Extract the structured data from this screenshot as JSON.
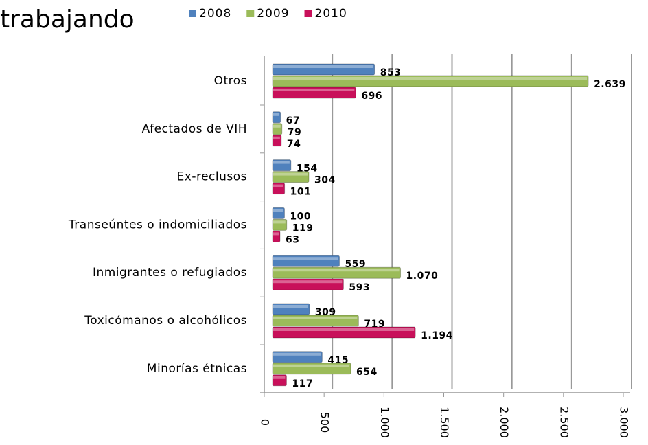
{
  "chart_data": {
    "type": "bar",
    "orientation": "horizontal",
    "title": "trabajando",
    "categories": [
      "Otros",
      "Afectados de VIH",
      "Ex-reclusos",
      "Transeúntes o indomiciliados",
      "Inmigrantes o refugiados",
      "Toxicómanos o alcohólicos",
      "Minorías étnicas"
    ],
    "series": [
      {
        "name": "2008",
        "color": "#4f81bd",
        "values": [
          853,
          67,
          154,
          100,
          559,
          309,
          415
        ],
        "value_labels": [
          "853",
          "67",
          "154",
          "100",
          "559",
          "309",
          "415"
        ]
      },
      {
        "name": "2009",
        "color": "#9bbb59",
        "values": [
          2639,
          79,
          304,
          119,
          1070,
          719,
          654
        ],
        "value_labels": [
          "2.639",
          "79",
          "304",
          "119",
          "1.070",
          "719",
          "654"
        ]
      },
      {
        "name": "2010",
        "color": "#c8105a",
        "values": [
          696,
          74,
          101,
          63,
          593,
          1194,
          117
        ],
        "value_labels": [
          "696",
          "74",
          "101",
          "63",
          "593",
          "1.194",
          "117"
        ]
      }
    ],
    "xlim": [
      0,
      3000
    ],
    "xticks": [
      0,
      500,
      {
        "value": 1000,
        "label": "1.000"
      },
      {
        "value": 1500,
        "label": "1.500"
      },
      {
        "value": 2000,
        "label": "2.000"
      },
      {
        "value": 2500,
        "label": "2.500"
      },
      {
        "value": 3000,
        "label": "3.000"
      }
    ],
    "grid": true,
    "legend": "top"
  }
}
